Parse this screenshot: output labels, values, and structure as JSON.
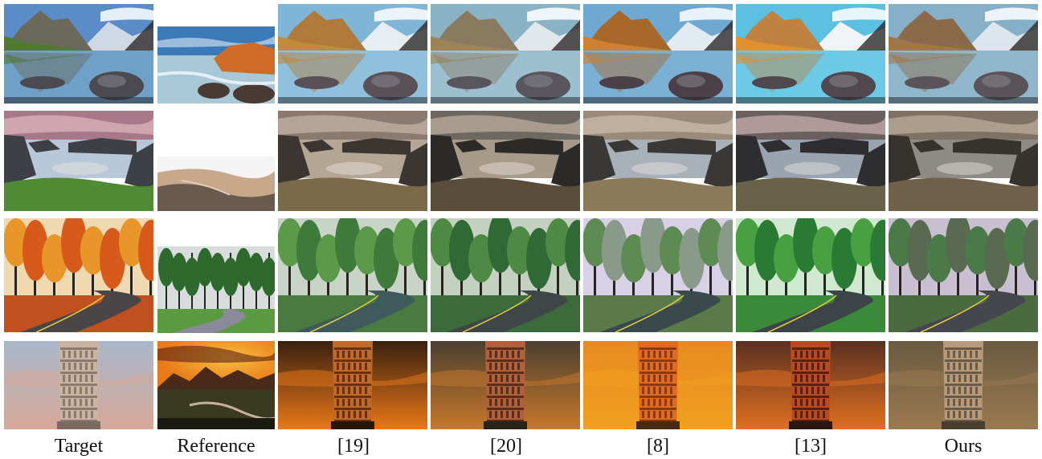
{
  "columns": [
    {
      "label": "Target"
    },
    {
      "label": "Reference"
    },
    {
      "label": "[19]"
    },
    {
      "label": "[20]"
    },
    {
      "label": "[8]"
    },
    {
      "label": "[13]"
    },
    {
      "label": "Ours"
    }
  ],
  "rows": [
    {
      "scene": "mountain-lake",
      "reference_scene": "rocky-sea-coast"
    },
    {
      "scene": "sea-cliffs",
      "reference_scene": "sand-dunes"
    },
    {
      "scene": "autumn-forest-road",
      "reference_scene": "green-forest-path"
    },
    {
      "scene": "leaning-tower",
      "reference_scene": "sunset-valley"
    }
  ],
  "palettes": {
    "mountain": {
      "target": {
        "sky": "#5a8cc8",
        "peak": "#6b6a5a",
        "far": "#cfd8e4",
        "hill": "#4f7a2f",
        "water": "#6ea0c8",
        "rock": "#4a4a50"
      },
      "c19": {
        "sky": "#7fb6d8",
        "peak": "#b07a3a",
        "far": "#e6eef4",
        "hill": "#c28a3a",
        "water": "#8fc0dc",
        "rock": "#5a5058"
      },
      "c20": {
        "sky": "#8ab4c6",
        "peak": "#8a7a60",
        "far": "#e0e8ec",
        "hill": "#9a8458",
        "water": "#9cc0d0",
        "rock": "#58565c"
      },
      "c8": {
        "sky": "#6fa8d0",
        "peak": "#a8682a",
        "far": "#e2eaf2",
        "hill": "#d08030",
        "water": "#7ab0d4",
        "rock": "#4c4048"
      },
      "c13": {
        "sky": "#5cc0e0",
        "peak": "#c08240",
        "far": "#f0f4f6",
        "hill": "#e0902e",
        "water": "#6ccae6",
        "rock": "#50484e"
      },
      "ours": {
        "sky": "#86b0c8",
        "peak": "#8a6a48",
        "far": "#dde6ec",
        "hill": "#a07848",
        "water": "#90b6cc",
        "rock": "#5a5458"
      }
    },
    "cliffs": {
      "target": {
        "sky": "#a8788a",
        "cloud": "#d8b0b8",
        "sea": "#b8c8d8",
        "cliff": "#3e4048",
        "grass": "#4f8a34"
      },
      "c19": {
        "sky": "#8a7a70",
        "cloud": "#c0b0a0",
        "sea": "#b4a694",
        "cliff": "#3c3632",
        "grass": "#7a6a4a"
      },
      "c20": {
        "sky": "#6e6862",
        "cloud": "#b8a898",
        "sea": "#a89a88",
        "cliff": "#2c2a28",
        "grass": "#5a4e3a"
      },
      "c8": {
        "sky": "#9a8a7a",
        "cloud": "#cbb8a6",
        "sea": "#a8b0b8",
        "cliff": "#3a3836",
        "grass": "#8a7a5a"
      },
      "c13": {
        "sky": "#6a6060",
        "cloud": "#c0a8a8",
        "sea": "#9aa4b0",
        "cliff": "#2e2e30",
        "grass": "#6a6248"
      },
      "ours": {
        "sky": "#7e7264",
        "cloud": "#b8a896",
        "sea": "#8e8a84",
        "cliff": "#36322e",
        "grass": "#70624a"
      }
    },
    "forest": {
      "target": {
        "sky": "#f0d8b0",
        "treeA": "#d85a1a",
        "treeB": "#e8962a",
        "ground": "#c0501e",
        "road": "#4a4648"
      },
      "c19": {
        "sky": "#c8d4c8",
        "treeA": "#3e7a3a",
        "treeB": "#5a9a48",
        "ground": "#4a7a40",
        "road": "#3e5a5a"
      },
      "c20": {
        "sky": "#c4d0c0",
        "treeA": "#2f6a34",
        "treeB": "#4e8a44",
        "ground": "#3c6a3a",
        "road": "#3e4648"
      },
      "c8": {
        "sky": "#d8d0e4",
        "treeA": "#8a9a8a",
        "treeB": "#5e8a54",
        "ground": "#5a7a4a",
        "road": "#3a4a4c"
      },
      "c13": {
        "sky": "#d0e8d0",
        "treeA": "#2a7a34",
        "treeB": "#48a040",
        "ground": "#3a8a3a",
        "road": "#3c4448"
      },
      "ours": {
        "sky": "#c8c0d0",
        "treeA": "#5a6a50",
        "treeB": "#4a7a48",
        "ground": "#4a6a40",
        "road": "#46464e"
      }
    },
    "tower": {
      "target": {
        "skyTop": "#a8b8cc",
        "skyBot": "#d8a898",
        "tower": "#c8b4a0",
        "band": "#8c7a70",
        "base": "#7a6a60"
      },
      "c19": {
        "skyTop": "#3a2010",
        "skyBot": "#e87818",
        "tower": "#c06a2a",
        "band": "#6a3010",
        "base": "#2a1608"
      },
      "c20": {
        "skyTop": "#4a4030",
        "skyBot": "#c8782a",
        "tower": "#b0603a",
        "band": "#5a2e18",
        "base": "#2a2418"
      },
      "c8": {
        "skyTop": "#e88a20",
        "skyBot": "#f0a020",
        "tower": "#e06a20",
        "band": "#8a3a10",
        "base": "#4a2a10"
      },
      "c13": {
        "skyTop": "#5a3020",
        "skyBot": "#e07020",
        "tower": "#b84a20",
        "band": "#5a2010",
        "base": "#2a1810"
      },
      "ours": {
        "skyTop": "#6a5a40",
        "skyBot": "#9a7a50",
        "tower": "#b89a78",
        "band": "#6a5a48",
        "base": "#4a3e30"
      }
    },
    "refs": {
      "coast": {
        "sky": "#3a7ab8",
        "rock": "#d06a28",
        "water": "#a8c8d8",
        "dark": "#4a3a34"
      },
      "dunes": {
        "sky": "#f4f4f4",
        "sand": "#c8a88a",
        "shade": "#6a5a4e"
      },
      "greenpath": {
        "sky": "#d8dcdc",
        "tree": "#2e6a2e",
        "grass": "#5a9a40",
        "path": "#8a8a9a"
      },
      "sunset": {
        "sky": "#e87818",
        "glow": "#f8c040",
        "mtn": "#4a2a18",
        "land": "#3a3a20",
        "river": "#c8b0a0"
      }
    }
  }
}
